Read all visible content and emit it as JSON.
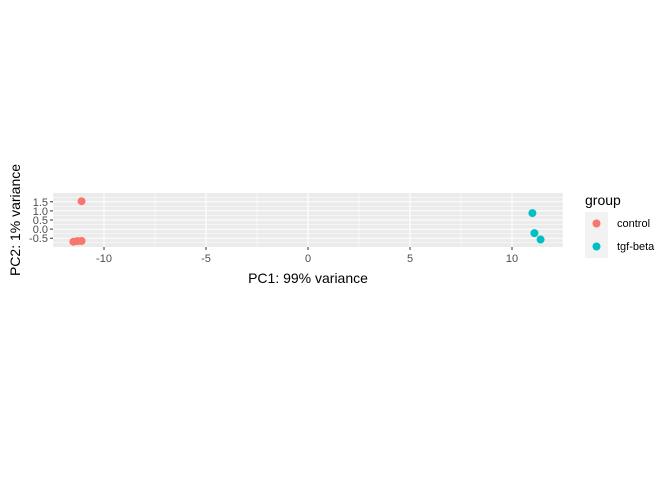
{
  "chart_data": {
    "type": "scatter",
    "title": "",
    "xlabel": "PC1: 99% variance",
    "ylabel": "PC2: 1% variance",
    "xlim": [
      -12.5,
      12.5
    ],
    "ylim": [
      -0.98,
      1.98
    ],
    "x_ticks": [
      -10,
      -5,
      0,
      5,
      10
    ],
    "x_tick_labels": [
      "-10",
      "-5",
      "0",
      "5",
      "10"
    ],
    "y_ticks": [
      -0.5,
      0.0,
      0.5,
      1.0,
      1.5
    ],
    "y_tick_labels": [
      "-0.5",
      "0.0",
      "0.5",
      "1.0",
      "1.5"
    ],
    "grid": true,
    "legend": {
      "title": "group",
      "position": "right",
      "entries": [
        "control",
        "tgf-beta"
      ]
    },
    "series": [
      {
        "name": "control",
        "color": "#F8766D",
        "points": [
          {
            "x": -11.1,
            "y": 1.53
          },
          {
            "x": -11.5,
            "y": -0.69
          },
          {
            "x": -11.3,
            "y": -0.66
          },
          {
            "x": -11.1,
            "y": -0.65
          }
        ]
      },
      {
        "name": "tgf-beta",
        "color": "#00BFC4",
        "points": [
          {
            "x": 11.0,
            "y": 0.88
          },
          {
            "x": 11.1,
            "y": -0.22
          },
          {
            "x": 11.4,
            "y": -0.57
          }
        ]
      }
    ],
    "panel_color": "#EBEBEB",
    "grid_color": "#FFFFFF"
  }
}
